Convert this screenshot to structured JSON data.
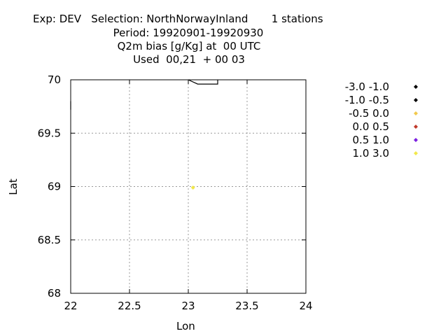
{
  "title": {
    "line1": "Exp: DEV   Selection: NorthNorwayInland       1 stations",
    "line2": "Period: 19920901-19920930",
    "line3": "Q2m bias [g/Kg] at  00 UTC",
    "line4": "Used  00,21  + 00 03"
  },
  "chart_data": {
    "type": "scatter",
    "title": "Q2m bias [g/Kg] at  00 UTC",
    "xlabel": "Lon",
    "ylabel": "Lat",
    "xlim": [
      22,
      24
    ],
    "ylim": [
      68,
      70
    ],
    "xticks": [
      22,
      22.5,
      23,
      23.5,
      24
    ],
    "xtick_labels": [
      "22",
      "22.5",
      "23",
      "23.5",
      "24"
    ],
    "yticks": [
      68,
      68.5,
      69,
      69.5,
      70
    ],
    "ytick_labels": [
      "68",
      "68.5",
      "69",
      "69.5",
      "70"
    ],
    "grid": true,
    "legend_position": "right",
    "legend": [
      {
        "label": "-3.0 -1.0",
        "color": "#000000"
      },
      {
        "label": "-1.0 -0.5",
        "color": "#000000"
      },
      {
        "label": "-0.5 0.0",
        "color": "#f2c94c"
      },
      {
        "label": "0.0 0.5",
        "color": "#c0392b"
      },
      {
        "label": "0.5 1.0",
        "color": "#7b1fe0"
      },
      {
        "label": "1.0 3.0",
        "color": "#f2e84a"
      }
    ],
    "points": [
      {
        "lon": 23.04,
        "lat": 68.99,
        "class": "1.0 3.0",
        "color": "#f2e84a"
      }
    ],
    "coastline": [
      [
        [
          22.0,
          69.8
        ],
        [
          22.0,
          69.72
        ]
      ],
      [
        [
          23.0,
          70.0
        ],
        [
          23.08,
          69.96
        ],
        [
          23.25,
          69.96
        ],
        [
          23.25,
          70.0
        ]
      ]
    ]
  }
}
